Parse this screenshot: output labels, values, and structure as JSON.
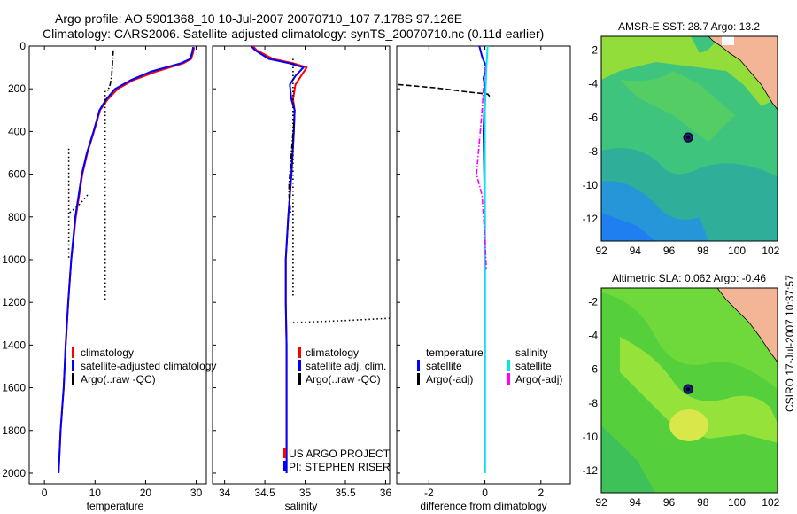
{
  "header": {
    "line1": "Argo profile: AO 5901368_10 10-Jul-2007 20070710_107 7.178S 97.126E",
    "line2": "Climatology: CARS2006. Satellite-adjusted climatology: synTS_20070710.nc (0.11d earlier)"
  },
  "footer": {
    "stamp": "CSIRO 17-Jul-2007 10:37:57"
  },
  "colors": {
    "climatology": "#ff0000",
    "satellite": "#0000ff",
    "argo": "#000000",
    "sal_satellite": "#00e5ee",
    "sal_argo": "#ff00ff",
    "ocean_low": "#1e90ff",
    "ocean_mid": "#2dbf6a",
    "ocean_high": "#9be12a",
    "land": "#f4b596"
  },
  "chart_data": [
    {
      "id": "temperature",
      "type": "line",
      "xlabel": "temperature",
      "xlim": [
        -3,
        32
      ],
      "ylim": [
        2050,
        0
      ],
      "xticks": [
        0,
        10,
        20,
        30
      ],
      "xtick_labels": [
        "0",
        "10",
        "20",
        "30"
      ],
      "yticks": [
        0,
        200,
        400,
        600,
        800,
        1000,
        1200,
        1400,
        1600,
        1800,
        2000
      ],
      "ytick_labels": [
        "0",
        "200",
        "400",
        "600",
        "800",
        "1000",
        "1200",
        "1400",
        "1600",
        "1800",
        "2000"
      ],
      "legend": [
        "climatology",
        "satellite-adjusted climatology",
        "Argo(..raw -QC)"
      ],
      "series": [
        {
          "name": "climatology",
          "style": "solid",
          "color": "#ff0000",
          "x": [
            29.6,
            29.4,
            29.0,
            27.5,
            22.0,
            17.5,
            14.5,
            12.5,
            11.0,
            9.8,
            8.5,
            7.5,
            6.2,
            5.3,
            4.7,
            4.2,
            3.8,
            3.5,
            3.2,
            3.0,
            2.8
          ],
          "y": [
            5,
            30,
            60,
            80,
            120,
            160,
            200,
            250,
            300,
            400,
            500,
            600,
            800,
            1000,
            1200,
            1400,
            1600,
            1700,
            1800,
            1900,
            2000
          ]
        },
        {
          "name": "satellite",
          "style": "solid",
          "color": "#0000ff",
          "x": [
            29.4,
            29.2,
            28.8,
            27.0,
            21.0,
            17.0,
            14.0,
            12.2,
            10.9,
            9.7,
            8.4,
            7.4,
            6.1,
            5.3,
            4.7,
            4.2,
            3.8,
            3.5,
            3.2,
            3.0,
            2.8
          ],
          "y": [
            5,
            30,
            60,
            80,
            120,
            160,
            200,
            250,
            300,
            400,
            500,
            600,
            800,
            1000,
            1200,
            1400,
            1600,
            1700,
            1800,
            1900,
            2000
          ]
        },
        {
          "name": "Argo(..raw -QC)",
          "style": "dashdot",
          "color": "#000000",
          "x": [
            13.6,
            13.5,
            13.4,
            13.3,
            13.0,
            12.5
          ],
          "y": [
            20,
            60,
            100,
            140,
            180,
            210
          ]
        },
        {
          "name": "Argo(..raw -QC)",
          "style": "dotted",
          "color": "#000000",
          "x": [
            12.0,
            12.0
          ],
          "y": [
            210,
            1190
          ]
        },
        {
          "name": "Argo(..raw -QC)",
          "style": "dotted",
          "color": "#000000",
          "x": [
            4.8,
            4.8
          ],
          "y": [
            480,
            1000
          ]
        },
        {
          "name": "Argo(..raw -QC)",
          "style": "dotted",
          "color": "#000000",
          "x": [
            5.0,
            7.0,
            8.8
          ],
          "y": [
            780,
            740,
            690
          ]
        }
      ]
    },
    {
      "id": "salinity",
      "type": "line",
      "xlabel": "salinity",
      "xlim": [
        33.85,
        36.05
      ],
      "ylim": [
        2050,
        0
      ],
      "xticks": [
        34,
        34.5,
        35,
        35.5,
        36
      ],
      "xtick_labels": [
        "34",
        "34.5",
        "35",
        "35.5",
        "36"
      ],
      "legend": [
        "climatology",
        "satellite adj. clim.",
        "Argo(..raw -QC)"
      ],
      "annotations": [
        "US ARGO PROJECT",
        "PI: STEPHEN RISER"
      ],
      "series": [
        {
          "name": "climatology",
          "style": "solid",
          "color": "#ff0000",
          "x": [
            34.35,
            34.4,
            34.6,
            34.85,
            35.02,
            34.95,
            34.88,
            34.85,
            34.87,
            34.86,
            34.83,
            34.79,
            34.76,
            34.76,
            34.77,
            34.77,
            34.77,
            34.77
          ],
          "y": [
            0,
            20,
            60,
            80,
            100,
            140,
            180,
            250,
            300,
            400,
            600,
            800,
            1000,
            1200,
            1400,
            1600,
            1800,
            2000
          ]
        },
        {
          "name": "satellite",
          "style": "solid",
          "color": "#0000ff",
          "x": [
            34.33,
            34.38,
            34.55,
            34.8,
            34.98,
            34.88,
            34.81,
            34.83,
            34.87,
            34.86,
            34.83,
            34.79,
            34.76,
            34.76,
            34.77,
            34.77,
            34.77,
            34.77
          ],
          "y": [
            0,
            20,
            60,
            80,
            100,
            140,
            180,
            250,
            300,
            400,
            600,
            800,
            1000,
            1200,
            1400,
            1600,
            1800,
            2000
          ]
        },
        {
          "name": "Argo(..raw -QC)",
          "style": "dotted",
          "color": "#000000",
          "x": [
            34.85,
            34.85
          ],
          "y": [
            60,
            1180
          ]
        },
        {
          "name": "Argo(..raw -QC)",
          "style": "dashdot",
          "color": "#000000",
          "x": [
            34.86,
            34.84,
            34.82,
            34.8,
            34.8,
            34.82
          ],
          "y": [
            360,
            450,
            550,
            650,
            700,
            780
          ]
        },
        {
          "name": "Argo(..raw -QC)",
          "style": "dotted",
          "color": "#000000",
          "x": [
            34.85,
            35.5,
            36.05
          ],
          "y": [
            1295,
            1285,
            1275
          ]
        }
      ]
    },
    {
      "id": "difference",
      "type": "line",
      "xlabel": "difference from climatology",
      "xlim": [
        -3.15,
        3.05
      ],
      "ylim": [
        2050,
        0
      ],
      "xticks": [
        -2,
        0,
        2
      ],
      "xtick_labels": [
        "-2",
        "0",
        "2"
      ],
      "legend_headers": [
        "temperature",
        "salinity"
      ],
      "legend": [
        "satellite",
        "Argo(-adj)",
        "satellite",
        "Argo(-adj)"
      ],
      "series": [
        {
          "name": "temperature satellite",
          "style": "solid",
          "color": "#0000ff",
          "x": [
            -0.2,
            -0.1,
            0.05,
            -0.05,
            0.0,
            -0.05,
            0.0,
            0.0,
            0.0,
            0.0
          ],
          "y": [
            0,
            50,
            100,
            150,
            200,
            400,
            800,
            1200,
            1600,
            2000
          ]
        },
        {
          "name": "temperature Argo(-adj)",
          "style": "dashed",
          "color": "#000000",
          "x": [
            -3.1,
            -1.8,
            -0.6,
            0.1,
            0.2
          ],
          "y": [
            180,
            195,
            215,
            225,
            240
          ]
        },
        {
          "name": "salinity satellite",
          "style": "solid",
          "color": "#00e5ee",
          "x": [
            0.1,
            0.05,
            0.0,
            0.0,
            0.0,
            0.0,
            0.0
          ],
          "y": [
            0,
            100,
            300,
            600,
            1000,
            1500,
            2000
          ]
        },
        {
          "name": "salinity Argo(-adj)",
          "style": "dashdot",
          "color": "#ff00ff",
          "x": [
            0.0,
            -0.1,
            -0.2,
            -0.3,
            -0.1,
            0.0,
            0.05
          ],
          "y": [
            100,
            300,
            450,
            600,
            700,
            900,
            1050
          ]
        }
      ]
    },
    {
      "id": "sst_map",
      "type": "heatmap",
      "title": "AMSR-E SST: 28.7 Argo: 13.2",
      "xlim": [
        92,
        102.4
      ],
      "ylim": [
        -13.3,
        -1.2
      ],
      "xticks": [
        92,
        94,
        96,
        98,
        100,
        102
      ],
      "xtick_labels": [
        "92",
        "94",
        "96",
        "98",
        "100",
        "102"
      ],
      "yticks": [
        -2,
        -4,
        -6,
        -8,
        -10,
        -12
      ],
      "ytick_labels": [
        "-2",
        "-4",
        "-6",
        "-8",
        "-10",
        "-12"
      ],
      "argo_position": {
        "lon": 97.126,
        "lat": -7.178
      }
    },
    {
      "id": "sla_map",
      "type": "heatmap",
      "title": "Altimetric SLA: 0.062 Argo: -0.46",
      "xlim": [
        92,
        102.4
      ],
      "ylim": [
        -13.3,
        -1.2
      ],
      "xticks": [
        92,
        94,
        96,
        98,
        100,
        102
      ],
      "xtick_labels": [
        "92",
        "94",
        "96",
        "98",
        "100",
        "102"
      ],
      "yticks": [
        -2,
        -4,
        -6,
        -8,
        -10,
        -12
      ],
      "ytick_labels": [
        "-2",
        "-4",
        "-6",
        "-8",
        "-10",
        "-12"
      ],
      "argo_position": {
        "lon": 97.126,
        "lat": -7.178
      }
    }
  ]
}
